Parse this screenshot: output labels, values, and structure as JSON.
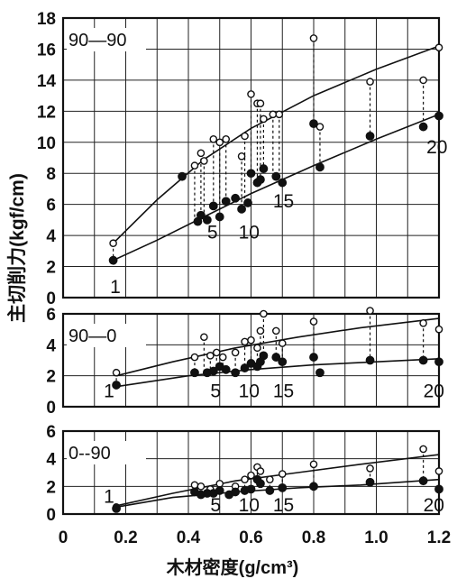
{
  "chart_data": {
    "type": "scatter",
    "ylabel": "主切削力(kgf/cm)",
    "xlabel": "木材密度(g/cm³)",
    "x_ticks": [
      "0",
      "0.2",
      "0.4",
      "0.6",
      "0.8",
      "1.0",
      "1.2"
    ],
    "xlim": [
      0,
      1.2
    ],
    "grid": true,
    "panels": [
      {
        "label": "90—90",
        "ylim": [
          0,
          18
        ],
        "y_ticks": [
          "0",
          "2",
          "4",
          "6",
          "8",
          "10",
          "12",
          "14",
          "16",
          "18"
        ],
        "annotations": [
          {
            "text": "1",
            "x": 0.15,
            "y": 0.3
          },
          {
            "text": "5",
            "x": 0.46,
            "y": 3.8
          },
          {
            "text": "10",
            "x": 0.56,
            "y": 3.8
          },
          {
            "text": "15",
            "x": 0.67,
            "y": 5.8
          },
          {
            "text": "20",
            "x": 1.16,
            "y": 9.3
          }
        ],
        "series": [
          {
            "marker": "open",
            "points": [
              [
                0.16,
                3.5
              ],
              [
                0.42,
                8.5
              ],
              [
                0.44,
                9.3
              ],
              [
                0.45,
                8.8
              ],
              [
                0.48,
                10.2
              ],
              [
                0.5,
                10.0
              ],
              [
                0.52,
                10.2
              ],
              [
                0.57,
                9.1
              ],
              [
                0.58,
                10.4
              ],
              [
                0.6,
                13.1
              ],
              [
                0.62,
                12.5
              ],
              [
                0.63,
                12.5
              ],
              [
                0.64,
                11.5
              ],
              [
                0.67,
                11.8
              ],
              [
                0.69,
                11.8
              ],
              [
                0.8,
                16.7
              ],
              [
                0.82,
                11.0
              ],
              [
                0.98,
                13.9
              ],
              [
                1.15,
                14.0
              ],
              [
                1.2,
                16.1
              ]
            ],
            "curve": [
              [
                0.16,
                3.5
              ],
              [
                0.3,
                6.3
              ],
              [
                0.45,
                8.9
              ],
              [
                0.6,
                10.9
              ],
              [
                0.8,
                13.0
              ],
              [
                1.0,
                14.7
              ],
              [
                1.2,
                16.2
              ]
            ]
          },
          {
            "marker": "filled",
            "points": [
              [
                0.16,
                2.4
              ],
              [
                0.38,
                7.8
              ],
              [
                0.43,
                4.9
              ],
              [
                0.44,
                5.3
              ],
              [
                0.46,
                5.0
              ],
              [
                0.48,
                5.9
              ],
              [
                0.5,
                5.2
              ],
              [
                0.52,
                6.2
              ],
              [
                0.55,
                6.4
              ],
              [
                0.57,
                5.7
              ],
              [
                0.59,
                6.1
              ],
              [
                0.6,
                8.0
              ],
              [
                0.62,
                7.4
              ],
              [
                0.63,
                7.6
              ],
              [
                0.64,
                8.3
              ],
              [
                0.68,
                7.8
              ],
              [
                0.7,
                7.4
              ],
              [
                0.8,
                11.2
              ],
              [
                0.82,
                8.4
              ],
              [
                0.98,
                10.4
              ],
              [
                1.15,
                11.0
              ],
              [
                1.2,
                11.7
              ]
            ],
            "curve": [
              [
                0.16,
                2.4
              ],
              [
                0.3,
                3.7
              ],
              [
                0.45,
                5.2
              ],
              [
                0.6,
                6.7
              ],
              [
                0.8,
                8.5
              ],
              [
                1.0,
                10.2
              ],
              [
                1.2,
                11.8
              ]
            ]
          }
        ]
      },
      {
        "label": "90—0",
        "ylim": [
          0,
          6
        ],
        "y_ticks": [
          "0",
          "2",
          "4",
          "6"
        ],
        "annotations": [
          {
            "text": "1",
            "x": 0.13,
            "y": 0.6
          },
          {
            "text": "5",
            "x": 0.47,
            "y": 0.6
          },
          {
            "text": "10",
            "x": 0.56,
            "y": 0.6
          },
          {
            "text": "15",
            "x": 0.67,
            "y": 0.6
          },
          {
            "text": "20",
            "x": 1.15,
            "y": 0.6
          }
        ],
        "series": [
          {
            "marker": "open",
            "points": [
              [
                0.17,
                2.2
              ],
              [
                0.42,
                3.2
              ],
              [
                0.45,
                4.5
              ],
              [
                0.47,
                3.3
              ],
              [
                0.49,
                3.5
              ],
              [
                0.51,
                3.2
              ],
              [
                0.55,
                3.5
              ],
              [
                0.58,
                4.2
              ],
              [
                0.6,
                4.3
              ],
              [
                0.62,
                3.8
              ],
              [
                0.63,
                4.9
              ],
              [
                0.64,
                6.0
              ],
              [
                0.68,
                4.9
              ],
              [
                0.7,
                4.1
              ],
              [
                0.8,
                5.5
              ],
              [
                0.98,
                6.2
              ],
              [
                1.15,
                5.4
              ],
              [
                1.2,
                5.0
              ]
            ],
            "curve": [
              [
                0.17,
                2.0
              ],
              [
                0.35,
                2.9
              ],
              [
                0.55,
                3.8
              ],
              [
                0.75,
                4.5
              ],
              [
                0.95,
                5.1
              ],
              [
                1.2,
                5.7
              ]
            ]
          },
          {
            "marker": "filled",
            "points": [
              [
                0.17,
                1.4
              ],
              [
                0.42,
                2.2
              ],
              [
                0.46,
                2.2
              ],
              [
                0.48,
                2.3
              ],
              [
                0.5,
                2.6
              ],
              [
                0.52,
                2.4
              ],
              [
                0.55,
                2.2
              ],
              [
                0.58,
                2.5
              ],
              [
                0.6,
                2.8
              ],
              [
                0.62,
                2.6
              ],
              [
                0.63,
                2.9
              ],
              [
                0.64,
                3.3
              ],
              [
                0.68,
                3.2
              ],
              [
                0.7,
                2.9
              ],
              [
                0.8,
                3.2
              ],
              [
                0.82,
                2.2
              ],
              [
                0.98,
                3.0
              ],
              [
                1.15,
                3.0
              ],
              [
                1.2,
                2.9
              ]
            ],
            "curve": [
              [
                0.17,
                1.3
              ],
              [
                0.4,
                2.0
              ],
              [
                0.6,
                2.4
              ],
              [
                0.8,
                2.7
              ],
              [
                1.0,
                2.9
              ],
              [
                1.2,
                3.1
              ]
            ]
          }
        ]
      },
      {
        "label": "0--90",
        "ylim": [
          0,
          6
        ],
        "y_ticks": [
          "0",
          "2",
          "4",
          "6"
        ],
        "annotations": [
          {
            "text": "1",
            "x": 0.13,
            "y": 0.8
          },
          {
            "text": "5",
            "x": 0.47,
            "y": 0.2
          },
          {
            "text": "10",
            "x": 0.56,
            "y": 0.2
          },
          {
            "text": "15",
            "x": 0.67,
            "y": 0.2
          },
          {
            "text": "20",
            "x": 1.15,
            "y": 0.2
          }
        ],
        "series": [
          {
            "marker": "open",
            "points": [
              [
                0.17,
                0.5
              ],
              [
                0.42,
                2.1
              ],
              [
                0.44,
                2.0
              ],
              [
                0.47,
                1.8
              ],
              [
                0.5,
                2.2
              ],
              [
                0.55,
                2.0
              ],
              [
                0.58,
                2.5
              ],
              [
                0.6,
                2.8
              ],
              [
                0.62,
                3.4
              ],
              [
                0.63,
                3.1
              ],
              [
                0.66,
                2.5
              ],
              [
                0.7,
                2.9
              ],
              [
                0.8,
                3.6
              ],
              [
                0.98,
                3.3
              ],
              [
                1.15,
                4.7
              ],
              [
                1.2,
                3.1
              ]
            ],
            "curve": [
              [
                0.17,
                0.6
              ],
              [
                0.35,
                1.5
              ],
              [
                0.55,
                2.4
              ],
              [
                0.75,
                3.0
              ],
              [
                0.95,
                3.6
              ],
              [
                1.2,
                4.3
              ]
            ]
          },
          {
            "marker": "filled",
            "points": [
              [
                0.17,
                0.4
              ],
              [
                0.42,
                1.6
              ],
              [
                0.44,
                1.4
              ],
              [
                0.46,
                1.5
              ],
              [
                0.48,
                1.5
              ],
              [
                0.5,
                1.7
              ],
              [
                0.53,
                1.4
              ],
              [
                0.55,
                1.6
              ],
              [
                0.58,
                1.7
              ],
              [
                0.6,
                1.8
              ],
              [
                0.62,
                2.5
              ],
              [
                0.63,
                2.2
              ],
              [
                0.66,
                1.7
              ],
              [
                0.7,
                1.9
              ],
              [
                0.8,
                2.0
              ],
              [
                0.98,
                2.3
              ],
              [
                1.15,
                2.4
              ],
              [
                1.2,
                1.8
              ]
            ],
            "curve": [
              [
                0.17,
                0.5
              ],
              [
                0.35,
                1.2
              ],
              [
                0.55,
                1.6
              ],
              [
                0.75,
                1.9
              ],
              [
                0.95,
                2.1
              ],
              [
                1.2,
                2.5
              ]
            ]
          }
        ]
      }
    ]
  }
}
